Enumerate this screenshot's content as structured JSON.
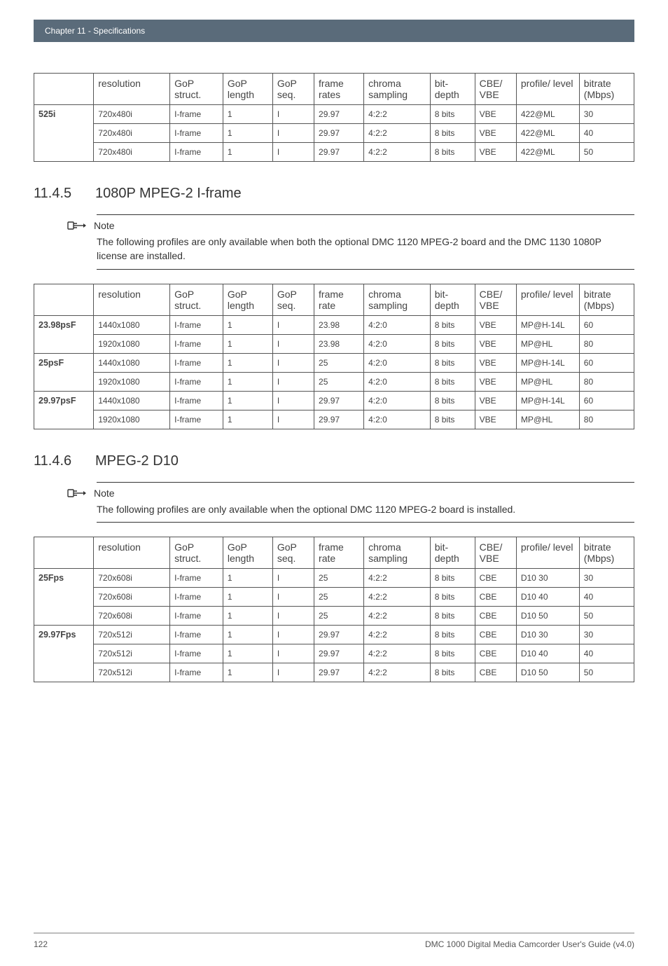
{
  "chapter_bar": "Chapter 11  - Specifications",
  "table1": {
    "headers": [
      "",
      "resolution",
      "GoP struct.",
      "GoP length",
      "GoP seq.",
      "frame rates",
      "chroma sampling",
      "bit-depth",
      "CBE/ VBE",
      "profile/ level",
      "bitrate (Mbps)"
    ],
    "rows": [
      {
        "grp": "525i",
        "cells": [
          "720x480i",
          "I-frame",
          "1",
          "I",
          "29.97",
          "4:2:2",
          "8 bits",
          "VBE",
          "422@ML",
          "30"
        ]
      },
      {
        "grp": "",
        "cells": [
          "720x480i",
          "I-frame",
          "1",
          "I",
          "29.97",
          "4:2:2",
          "8 bits",
          "VBE",
          "422@ML",
          "40"
        ]
      },
      {
        "grp": "",
        "cells": [
          "720x480i",
          "I-frame",
          "1",
          "I",
          "29.97",
          "4:2:2",
          "8 bits",
          "VBE",
          "422@ML",
          "50"
        ]
      }
    ]
  },
  "sec1": {
    "num": "11.4.5",
    "title": "1080P MPEG-2 I-frame"
  },
  "note1": {
    "label": "Note",
    "text": "The following profiles are only available when both the optional DMC 1120 MPEG-2 board and the DMC 1130 1080P license are installed."
  },
  "table2": {
    "headers": [
      "",
      "resolution",
      "GoP struct.",
      "GoP length",
      "GoP seq.",
      "frame rate",
      "chroma sampling",
      "bit-depth",
      "CBE/ VBE",
      "profile/ level",
      "bitrate (Mbps)"
    ],
    "rows": [
      {
        "grp": "23.98psF",
        "cells": [
          "1440x1080",
          "I-frame",
          "1",
          "I",
          "23.98",
          "4:2:0",
          "8 bits",
          "VBE",
          "MP@H-14L",
          "60"
        ]
      },
      {
        "grp": "",
        "cells": [
          "1920x1080",
          "I-frame",
          "1",
          "I",
          "23.98",
          "4:2:0",
          "8 bits",
          "VBE",
          "MP@HL",
          "80"
        ]
      },
      {
        "grp": "25psF",
        "cells": [
          "1440x1080",
          "I-frame",
          "1",
          "I",
          "25",
          "4:2:0",
          "8 bits",
          "VBE",
          "MP@H-14L",
          "60"
        ]
      },
      {
        "grp": "",
        "cells": [
          "1920x1080",
          "I-frame",
          "1",
          "I",
          "25",
          "4:2:0",
          "8 bits",
          "VBE",
          "MP@HL",
          "80"
        ]
      },
      {
        "grp": "29.97psF",
        "cells": [
          "1440x1080",
          "I-frame",
          "1",
          "I",
          "29.97",
          "4:2:0",
          "8 bits",
          "VBE",
          "MP@H-14L",
          "60"
        ]
      },
      {
        "grp": "",
        "cells": [
          "1920x1080",
          "I-frame",
          "1",
          "I",
          "29.97",
          "4:2:0",
          "8 bits",
          "VBE",
          "MP@HL",
          "80"
        ]
      }
    ]
  },
  "sec2": {
    "num": "11.4.6",
    "title": "MPEG-2 D10"
  },
  "note2": {
    "label": "Note",
    "text": "The following profiles are only available when the optional DMC 1120 MPEG-2 board is installed."
  },
  "table3": {
    "headers": [
      "",
      "resolution",
      "GoP struct.",
      "GoP length",
      "GoP seq.",
      "frame rate",
      "chroma sampling",
      "bit-depth",
      "CBE/ VBE",
      "profile/ level",
      "bitrate (Mbps)"
    ],
    "rows": [
      {
        "grp": "25Fps",
        "cells": [
          "720x608i",
          "I-frame",
          "1",
          "I",
          "25",
          "4:2:2",
          "8 bits",
          "CBE",
          "D10 30",
          "30"
        ]
      },
      {
        "grp": "",
        "cells": [
          "720x608i",
          "I-frame",
          "1",
          "I",
          "25",
          "4:2:2",
          "8 bits",
          "CBE",
          "D10 40",
          "40"
        ]
      },
      {
        "grp": "",
        "cells": [
          "720x608i",
          "I-frame",
          "1",
          "I",
          "25",
          "4:2:2",
          "8 bits",
          "CBE",
          "D10 50",
          "50"
        ]
      },
      {
        "grp": "29.97Fps",
        "cells": [
          "720x512i",
          "I-frame",
          "1",
          "I",
          "29.97",
          "4:2:2",
          "8 bits",
          "CBE",
          "D10 30",
          "30"
        ]
      },
      {
        "grp": "",
        "cells": [
          "720x512i",
          "I-frame",
          "1",
          "I",
          "29.97",
          "4:2:2",
          "8 bits",
          "CBE",
          "D10 40",
          "40"
        ]
      },
      {
        "grp": "",
        "cells": [
          "720x512i",
          "I-frame",
          "1",
          "I",
          "29.97",
          "4:2:2",
          "8 bits",
          "CBE",
          "D10 50",
          "50"
        ]
      }
    ]
  },
  "footer": {
    "page": "122",
    "doc": "DMC 1000 Digital Media Camcorder User's Guide (v4.0)"
  },
  "colors": {
    "chapter_bar_bg": "#5a6b7a",
    "chapter_bar_fg": "#ffffff",
    "table_border": "#555555",
    "text": "#333333",
    "footer_rule": "#bdbdbd"
  }
}
